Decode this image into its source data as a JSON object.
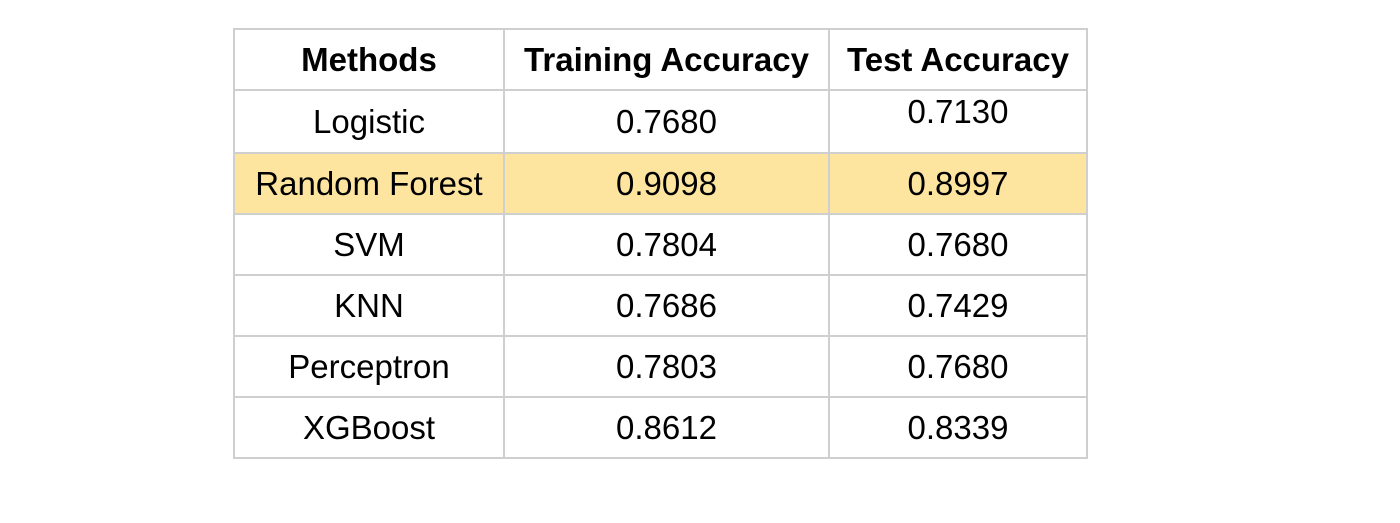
{
  "colors": {
    "highlight_row": "#fde5a0",
    "border": "#cfcfcf",
    "text": "#000000"
  },
  "table": {
    "headers": [
      "Methods",
      "Training Accuracy",
      "Test Accuracy"
    ],
    "highlighted_row": "Random Forest",
    "rows": [
      {
        "method": "Logistic",
        "training_accuracy": "0.7680",
        "test_accuracy": "0.7130"
      },
      {
        "method": "Random Forest",
        "training_accuracy": "0.9098",
        "test_accuracy": "0.8997"
      },
      {
        "method": "SVM",
        "training_accuracy": "0.7804",
        "test_accuracy": "0.7680"
      },
      {
        "method": "KNN",
        "training_accuracy": "0.7686",
        "test_accuracy": "0.7429"
      },
      {
        "method": "Perceptron",
        "training_accuracy": "0.7803",
        "test_accuracy": "0.7680"
      },
      {
        "method": "XGBoost",
        "training_accuracy": "0.8612",
        "test_accuracy": "0.8339"
      }
    ]
  }
}
